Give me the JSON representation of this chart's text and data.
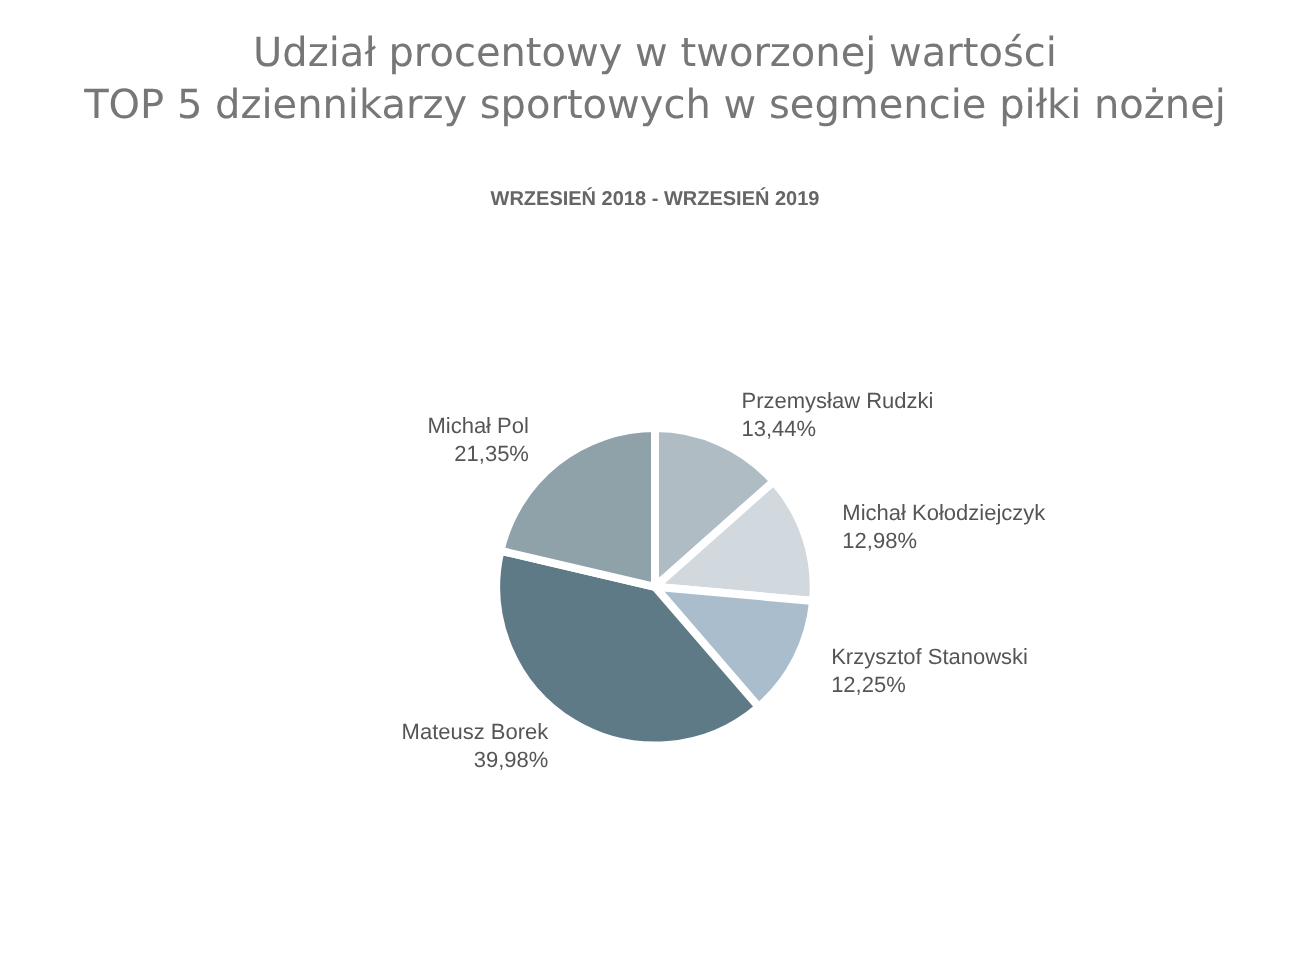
{
  "chart_data": {
    "type": "pie",
    "title": "Udział procentowy w tworzonej wartości\nTOP 5 dziennikarzy sportowych w segmencie piłki nożnej",
    "subtitle": "WRZESIEŃ 2018 - WRZESIEŃ 2019",
    "categories": [
      "Przemysław Rudzki",
      "Michał Kołodziejczyk",
      "Krzysztof Stanowski",
      "Mateusz Borek",
      "Michał Pol"
    ],
    "values": [
      13.44,
      12.98,
      12.25,
      39.98,
      21.35
    ],
    "value_labels": [
      "13,44%",
      "12,98%",
      "12,25%",
      "39,98%",
      "21,35%"
    ],
    "colors": [
      "#afbcc4",
      "#d2d9de",
      "#aabdcd",
      "#5f7a87",
      "#8fa1a9"
    ],
    "legend": false
  }
}
